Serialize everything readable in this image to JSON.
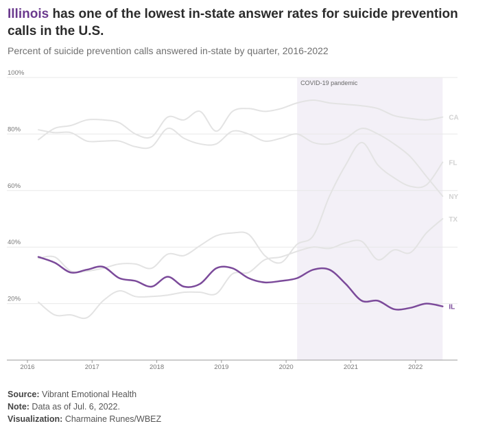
{
  "title": {
    "highlight": "Illinois",
    "rest": " has one of the lowest in-state answer rates for suicide prevention calls in the U.S."
  },
  "subtitle": "Percent of suicide prevention calls answered in-state by quarter, 2016-2022",
  "footer": {
    "source_label": "Source:",
    "source": " Vibrant Emotional Health",
    "note_label": "Note:",
    "note": " Data as of Jul. 6, 2022.",
    "viz_label": "Visualization:",
    "viz": " Charmaine Runes/WBEZ"
  },
  "colors": {
    "highlight": "#7b4a9a",
    "other": "#e3e3e3",
    "label_other": "#d2d2d2",
    "shade": "#f3f0f7",
    "grid": "#e8e8e8",
    "axis": "#999999"
  },
  "chart_data": {
    "type": "line",
    "xlabel": "",
    "ylabel": "",
    "xlim": [
      2016,
      2022.65
    ],
    "ylim": [
      0,
      100
    ],
    "y_ticks": [
      20,
      40,
      60,
      80,
      100
    ],
    "y_tick_labels": [
      "20%",
      "40%",
      "60%",
      "80%",
      "100%"
    ],
    "x_ticks": [
      2016,
      2017,
      2018,
      2019,
      2020,
      2021,
      2022
    ],
    "x_tick_labels": [
      "2016",
      "2017",
      "2018",
      "2019",
      "2020",
      "2021",
      "2022"
    ],
    "annotation": {
      "label": "COVID-19 pandemic",
      "x_start": 2020.17,
      "x_end": 2022.42
    },
    "x": [
      2016.17,
      2016.42,
      2016.67,
      2016.92,
      2017.17,
      2017.42,
      2017.67,
      2017.92,
      2018.17,
      2018.42,
      2018.67,
      2018.92,
      2019.17,
      2019.42,
      2019.67,
      2019.92,
      2020.17,
      2020.42,
      2020.67,
      2020.92,
      2021.17,
      2021.42,
      2021.67,
      2021.92,
      2022.17,
      2022.42
    ],
    "series": [
      {
        "name": "CA",
        "highlight": false,
        "values": [
          78,
          82,
          83,
          85,
          85,
          84,
          80,
          79,
          86,
          85,
          88,
          81,
          88,
          89,
          88,
          89,
          91,
          92,
          91,
          90.5,
          90,
          89,
          86.5,
          85.5,
          85,
          86
        ]
      },
      {
        "name": "NY",
        "highlight": false,
        "values": [
          81.5,
          80.5,
          80.5,
          77.5,
          77.5,
          77.5,
          75.5,
          75.5,
          82,
          78.5,
          76.5,
          76.5,
          81,
          80,
          77.5,
          78.5,
          80,
          77,
          76.5,
          78.5,
          82,
          80,
          76.5,
          72,
          65,
          58
        ]
      },
      {
        "name": "FL",
        "highlight": false,
        "values": [
          36,
          36.5,
          31.5,
          31.5,
          32.5,
          34,
          34,
          32.5,
          37.5,
          37,
          40.5,
          44,
          45,
          44.5,
          37,
          34.5,
          41,
          44,
          58,
          69,
          77,
          69,
          64.5,
          61.5,
          62,
          70
        ]
      },
      {
        "name": "TX",
        "highlight": false,
        "values": [
          20.5,
          16,
          16,
          15,
          21,
          24.5,
          22.5,
          22.5,
          23,
          24,
          24,
          23.5,
          30.5,
          31,
          35.5,
          36.5,
          38.5,
          40,
          39.5,
          41.5,
          42,
          35.5,
          39,
          38,
          45,
          50
        ]
      },
      {
        "name": "IL",
        "highlight": true,
        "values": [
          36.5,
          34.5,
          31,
          32,
          33,
          29,
          28,
          26,
          29.5,
          26,
          27,
          32.5,
          32.5,
          29,
          27.5,
          28,
          29,
          32,
          32,
          27,
          21,
          21,
          18,
          18.5,
          20,
          19
        ]
      }
    ]
  }
}
